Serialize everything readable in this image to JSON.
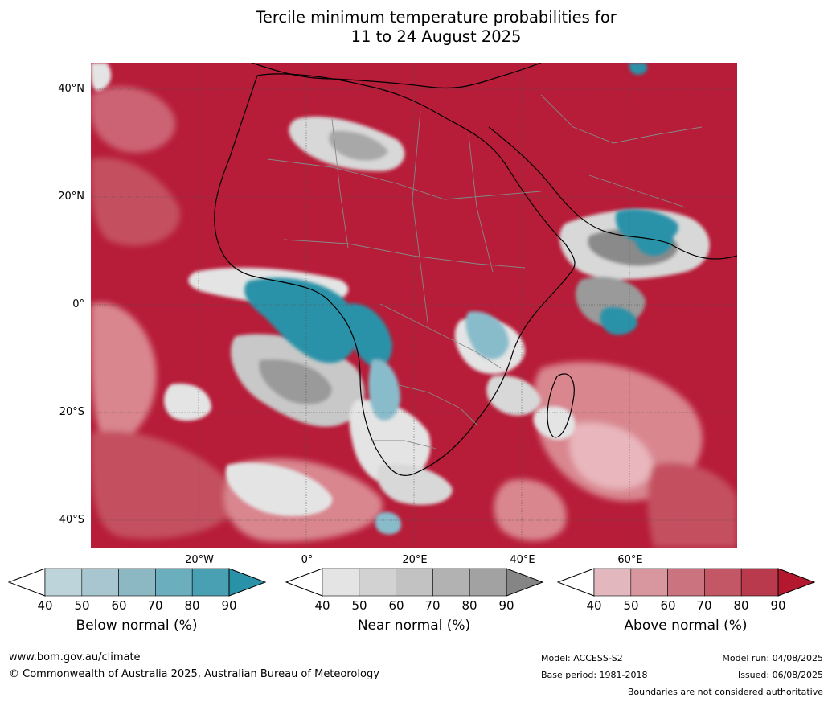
{
  "title": {
    "line1": "Tercile minimum temperature probabilities for",
    "line2": "11 to 24 August 2025"
  },
  "map": {
    "lat_labels": [
      "40°N",
      "20°N",
      "0°",
      "20°S",
      "40°S"
    ],
    "lon_labels": [
      "20°W",
      "0°",
      "20°E",
      "40°E",
      "60°E"
    ],
    "colors": {
      "ocean_red": "#b71c38",
      "red_mid": "#c4505f",
      "red_light": "#d9868f",
      "pink": "#e8b6bc",
      "grey_light": "#d8d8d8",
      "grey_dark": "#8a8a8a",
      "teal_light": "#89bccb",
      "teal_dark": "#2a92a8"
    }
  },
  "colorbars": [
    {
      "label": "Below normal (%)",
      "ticks": [
        "40",
        "50",
        "60",
        "70",
        "80",
        "90"
      ],
      "colors": [
        "#ffffff",
        "#bed4db",
        "#a8c6cf",
        "#8cb8c4",
        "#6baebd",
        "#4aa0b3",
        "#2a92a8"
      ]
    },
    {
      "label": "Near normal (%)",
      "ticks": [
        "40",
        "50",
        "60",
        "70",
        "80",
        "90"
      ],
      "colors": [
        "#ffffff",
        "#e4e4e4",
        "#d2d2d2",
        "#c2c2c2",
        "#b2b2b2",
        "#a2a2a2",
        "#858585"
      ]
    },
    {
      "label": "Above normal (%)",
      "ticks": [
        "40",
        "50",
        "60",
        "70",
        "80",
        "90"
      ],
      "colors": [
        "#ffffff",
        "#e2b8be",
        "#d8969e",
        "#cc7380",
        "#c45766",
        "#b83a4c",
        "#b3182f"
      ]
    }
  ],
  "footer": {
    "website": "www.bom.gov.au/climate",
    "copyright": "© Commonwealth of Australia 2025, Australian Bureau of Meteorology",
    "model": "Model: ACCESS-S2",
    "base_period": "Base period: 1981-2018",
    "model_run": "Model run: 04/08/2025",
    "issued": "Issued: 06/08/2025",
    "disclaimer": "Boundaries are not considered authoritative"
  }
}
